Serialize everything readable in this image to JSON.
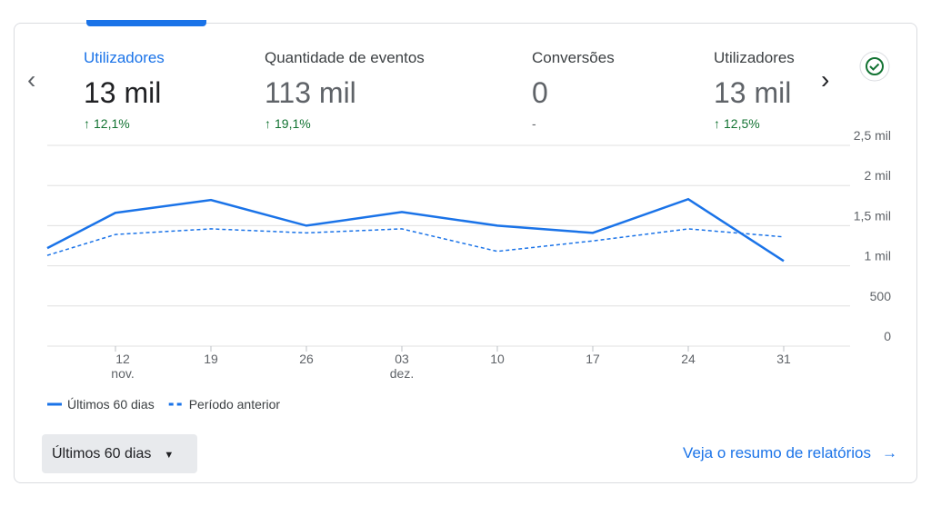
{
  "metrics": [
    {
      "label": "Utilizadores",
      "value": "13 mil",
      "change": "12,1%"
    },
    {
      "label": "Quantidade de eventos",
      "value": "113 mil",
      "change": "19,1%"
    },
    {
      "label": "Conversões",
      "value": "0",
      "change": "-"
    },
    {
      "label": "Utilizadores",
      "value": "13 mil",
      "change": "12,5%"
    }
  ],
  "chart_data": {
    "type": "line",
    "categories": [
      null,
      "12",
      "19",
      "26",
      "03",
      "10",
      "17",
      "24",
      "31"
    ],
    "category_sublabels": [
      null,
      "nov.",
      null,
      null,
      "dez.",
      null,
      null,
      null,
      null
    ],
    "series": [
      {
        "name": "Últimos 60 dias",
        "color": "#1a73e8",
        "dashed": false,
        "values": [
          1220,
          1660,
          1820,
          1500,
          1670,
          1500,
          1410,
          1830,
          1060
        ]
      },
      {
        "name": "Período anterior",
        "color": "#1a73e8",
        "dashed": true,
        "values": [
          1130,
          1390,
          1460,
          1410,
          1460,
          1180,
          1310,
          1460,
          1360
        ]
      }
    ],
    "ylim": [
      0,
      2500
    ],
    "yticks": [
      0,
      500,
      {
        "value": 1000,
        "label": "1 mil"
      },
      {
        "value": 1500,
        "label": "1,5 mil"
      },
      {
        "value": 2000,
        "label": "2 mil"
      },
      {
        "value": 2500,
        "label": "2,5 mil"
      }
    ],
    "grid": true
  },
  "controls": {
    "range_button": "Últimos 60 dias",
    "report_link": "Veja o resumo de relatórios"
  }
}
